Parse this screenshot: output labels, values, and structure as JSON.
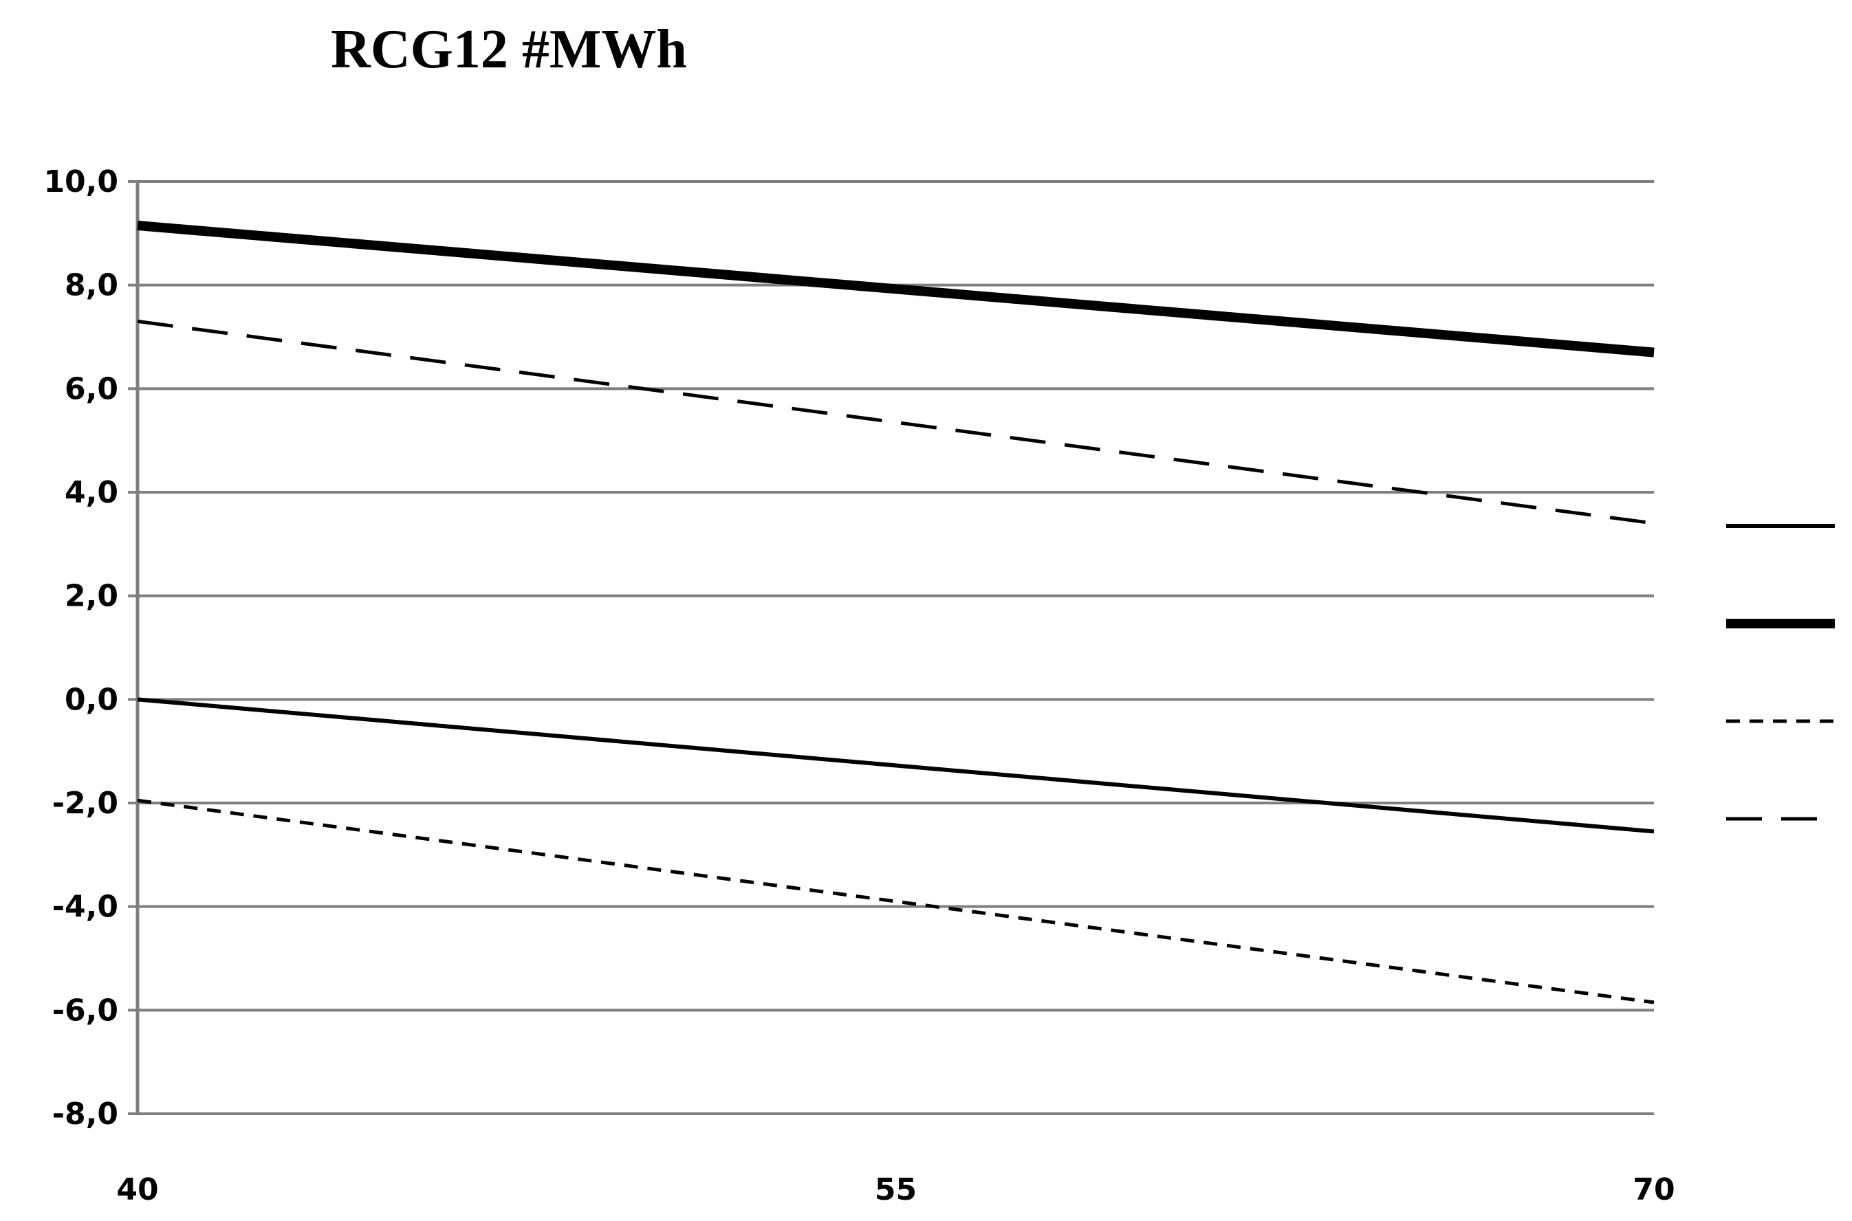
{
  "chart_data": {
    "type": "line",
    "title": "RCG12 #MWh",
    "xlabel": "",
    "ylabel": "",
    "x": [
      40,
      70
    ],
    "x_tick_labels": [
      "40",
      "55",
      "70"
    ],
    "x_ticks": [
      40,
      55,
      70
    ],
    "xlim": [
      40,
      70
    ],
    "y_tick_labels": [
      "10,0",
      "8,0",
      "6,0",
      "4,0",
      "2,0",
      "0,0",
      "-2,0",
      "-4,0",
      "-6,0",
      "-8,0"
    ],
    "y_ticks": [
      10,
      8,
      6,
      4,
      2,
      0,
      -2,
      -4,
      -6,
      -8
    ],
    "ylim": [
      -8,
      10
    ],
    "grid": true,
    "legend": "right, line samples only (no printed labels)",
    "series": [
      {
        "values": [
          0.0,
          -2.55
        ],
        "style": "solid",
        "color": "#000000"
      },
      {
        "values": [
          9.15,
          6.7
        ],
        "style": "solid-thick",
        "color": "#000000"
      },
      {
        "values": [
          -1.95,
          -5.85
        ],
        "style": "dotted",
        "color": "#000000"
      },
      {
        "values": [
          7.3,
          3.4
        ],
        "style": "dashed",
        "color": "#000000"
      }
    ],
    "colors": {
      "grid": "#7f7f7f",
      "axis": "#7f7f7f",
      "lines": "#000000"
    }
  }
}
